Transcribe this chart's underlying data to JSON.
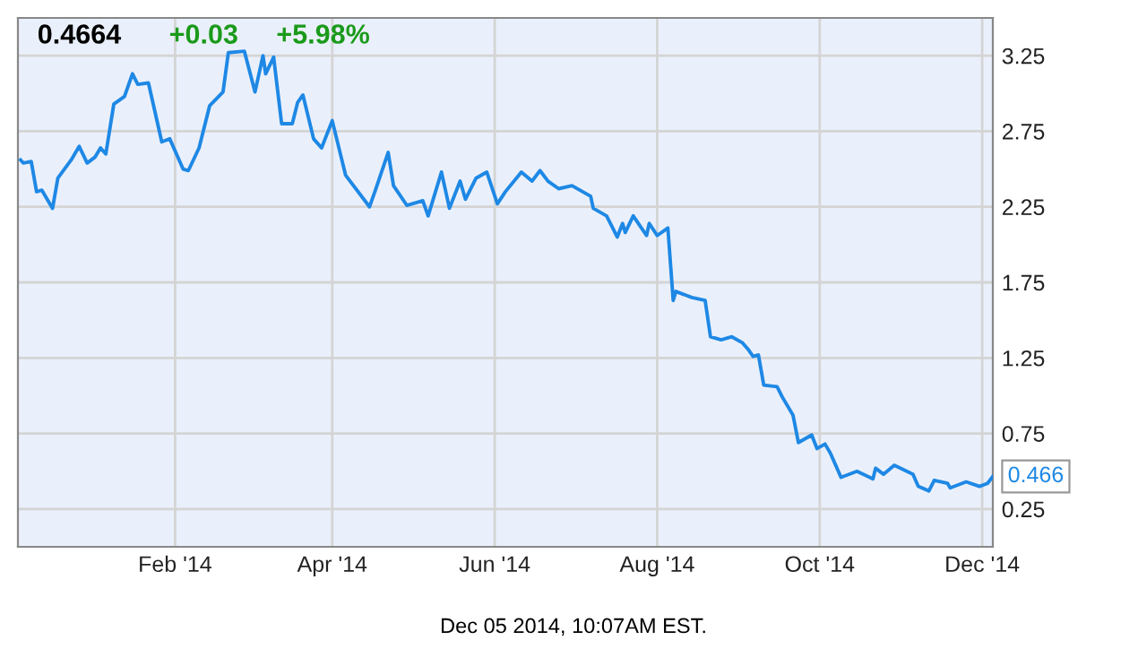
{
  "chart_data": {
    "type": "line",
    "title": "0.4664",
    "annotations": [
      "+0.03",
      "+5.98%",
      "Dec 05 2014, 10:07AM EST.",
      {
        "text": "0.466",
        "x": "2014-12-05",
        "y": 0.466
      }
    ],
    "x": [
      "2013-12-05",
      "2013-12-06",
      "2013-12-09",
      "2013-12-11",
      "2013-12-13",
      "2013-12-17",
      "2013-12-19",
      "2013-12-24",
      "2013-12-27",
      "2013-12-30",
      "2014-01-02",
      "2014-01-04",
      "2014-01-06",
      "2014-01-09",
      "2014-01-13",
      "2014-01-16",
      "2014-01-18",
      "2014-01-22",
      "2014-01-27",
      "2014-01-30",
      "2014-02-04",
      "2014-02-06",
      "2014-02-10",
      "2014-02-14",
      "2014-02-19",
      "2014-02-21",
      "2014-02-27",
      "2014-03-03",
      "2014-03-06",
      "2014-03-07",
      "2014-03-10",
      "2014-03-13",
      "2014-03-17",
      "2014-03-19",
      "2014-03-21",
      "2014-03-25",
      "2014-03-28",
      "2014-04-01",
      "2014-04-06",
      "2014-04-15",
      "2014-04-17",
      "2014-04-22",
      "2014-04-24",
      "2014-04-29",
      "2014-05-05",
      "2014-05-07",
      "2014-05-12",
      "2014-05-15",
      "2014-05-19",
      "2014-05-21",
      "2014-05-25",
      "2014-05-29",
      "2014-06-02",
      "2014-06-05",
      "2014-06-11",
      "2014-06-15",
      "2014-06-18",
      "2014-06-21",
      "2014-06-25",
      "2014-06-30",
      "2014-07-07",
      "2014-07-08",
      "2014-07-13",
      "2014-07-17",
      "2014-07-19",
      "2014-07-20",
      "2014-07-23",
      "2014-07-28",
      "2014-07-29",
      "2014-08-01",
      "2014-08-05",
      "2014-08-07",
      "2014-08-08",
      "2014-08-14",
      "2014-08-19",
      "2014-08-21",
      "2014-08-25",
      "2014-08-29",
      "2014-09-02",
      "2014-09-04",
      "2014-09-06",
      "2014-09-08",
      "2014-09-10",
      "2014-09-15",
      "2014-09-17",
      "2014-09-21",
      "2014-09-23",
      "2014-09-28",
      "2014-09-30",
      "2014-10-03",
      "2014-10-05",
      "2014-10-09",
      "2014-10-15",
      "2014-10-21",
      "2014-10-22",
      "2014-10-25",
      "2014-10-29",
      "2014-11-05",
      "2014-11-07",
      "2014-11-11",
      "2014-11-13",
      "2014-11-18",
      "2014-11-19",
      "2014-11-25",
      "2014-11-30",
      "2014-12-03",
      "2014-12-05"
    ],
    "series": [
      {
        "color": "#1e88e5",
        "values": [
          2.56,
          2.54,
          2.55,
          2.35,
          2.36,
          2.24,
          2.44,
          2.56,
          2.65,
          2.54,
          2.58,
          2.64,
          2.6,
          2.93,
          2.98,
          3.13,
          3.06,
          3.07,
          2.68,
          2.7,
          2.5,
          2.49,
          2.64,
          2.92,
          3.01,
          3.27,
          3.28,
          3.01,
          3.25,
          3.13,
          3.24,
          2.8,
          2.8,
          2.94,
          2.99,
          2.7,
          2.64,
          2.82,
          2.46,
          2.25,
          2.35,
          2.61,
          2.39,
          2.26,
          2.29,
          2.19,
          2.48,
          2.24,
          2.42,
          2.3,
          2.44,
          2.48,
          2.27,
          2.35,
          2.48,
          2.42,
          2.49,
          2.42,
          2.37,
          2.39,
          2.32,
          2.24,
          2.19,
          2.05,
          2.14,
          2.08,
          2.19,
          2.06,
          2.14,
          2.06,
          2.11,
          1.63,
          1.69,
          1.65,
          1.63,
          1.39,
          1.37,
          1.39,
          1.35,
          1.31,
          1.26,
          1.27,
          1.07,
          1.06,
          0.99,
          0.87,
          0.69,
          0.74,
          0.65,
          0.68,
          0.62,
          0.46,
          0.5,
          0.45,
          0.52,
          0.48,
          0.54,
          0.48,
          0.4,
          0.37,
          0.44,
          0.42,
          0.39,
          0.43,
          0.4,
          0.42,
          0.466
        ]
      }
    ],
    "xlim": [
      "2013-12-04",
      "2014-12-05"
    ],
    "ylim": [
      0,
      3.5
    ],
    "xticks": [
      {
        "value": "2014-02-01",
        "label": "Feb '14"
      },
      {
        "value": "2014-04-01",
        "label": "Apr '14"
      },
      {
        "value": "2014-06-01",
        "label": "Jun '14"
      },
      {
        "value": "2014-08-01",
        "label": "Aug '14"
      },
      {
        "value": "2014-10-01",
        "label": "Oct '14"
      },
      {
        "value": "2014-12-01",
        "label": "Dec '14"
      }
    ],
    "yticks": [
      0.25,
      0.75,
      1.25,
      1.75,
      2.25,
      2.75,
      3.25
    ],
    "grid": true,
    "marker": "none",
    "line_style": "solid"
  }
}
